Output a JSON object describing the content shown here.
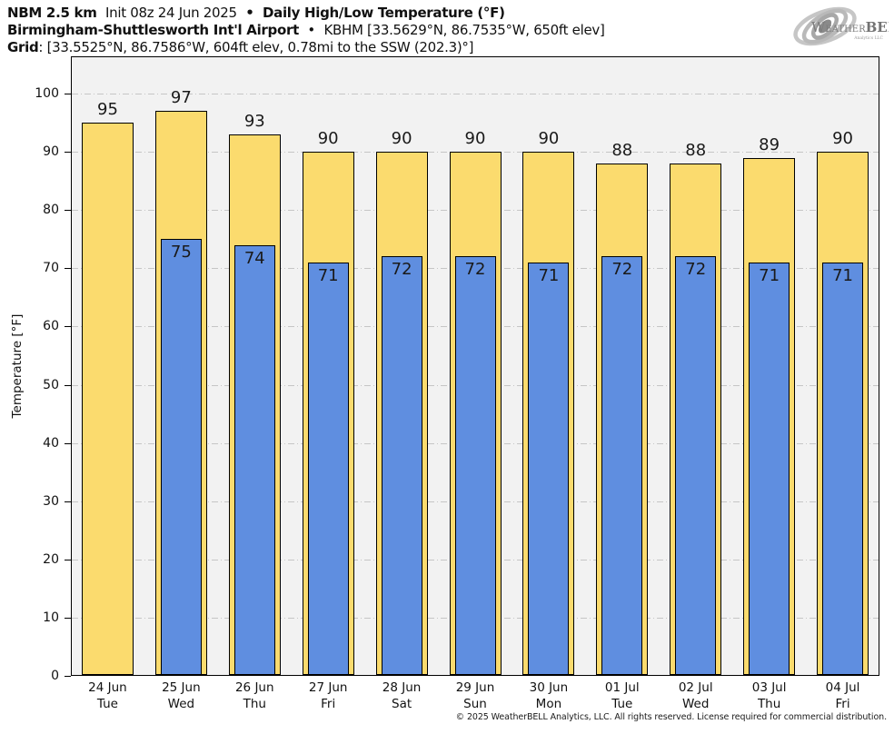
{
  "header": {
    "line1": {
      "model": "NBM 2.5 km",
      "init": "Init 08z 24 Jun 2025",
      "separator": "•",
      "title": "Daily High/Low Temperature (°F)"
    },
    "line2": {
      "station": "Birmingham-Shuttlesworth Int'l Airport",
      "separator": "•",
      "station_info": "KBHM [33.5629°N, 86.7535°W, 650ft elev]"
    },
    "line3": {
      "label": "Grid",
      "info": ": [33.5525°N, 86.7586°W, 604ft elev, 0.78mi to the SSW (202.3)°]"
    }
  },
  "logo": {
    "word_initial": "W",
    "word_rest": "EATHER",
    "word_bold": "BELL",
    "subtitle": "Analytics LLC"
  },
  "chart_data": {
    "type": "bar",
    "title": "Daily High/Low Temperature (°F)",
    "xlabel": "",
    "ylabel": "Temperature [°F]",
    "ylim": [
      0,
      100
    ],
    "yticks": [
      0,
      10,
      20,
      30,
      40,
      50,
      60,
      70,
      80,
      90,
      100
    ],
    "grid": true,
    "legend_position": "none",
    "plot_background": "#f2f2f2",
    "categories": [
      {
        "date": "24 Jun",
        "day": "Tue"
      },
      {
        "date": "25 Jun",
        "day": "Wed"
      },
      {
        "date": "26 Jun",
        "day": "Thu"
      },
      {
        "date": "27 Jun",
        "day": "Fri"
      },
      {
        "date": "28 Jun",
        "day": "Sat"
      },
      {
        "date": "29 Jun",
        "day": "Sun"
      },
      {
        "date": "30 Jun",
        "day": "Mon"
      },
      {
        "date": "01 Jul",
        "day": "Tue"
      },
      {
        "date": "02 Jul",
        "day": "Wed"
      },
      {
        "date": "03 Jul",
        "day": "Thu"
      },
      {
        "date": "04 Jul",
        "day": "Fri"
      }
    ],
    "series": [
      {
        "name": "Daily High",
        "color": "#fbdb6e",
        "values": [
          95,
          97,
          93,
          90,
          90,
          90,
          90,
          88,
          88,
          89,
          90
        ]
      },
      {
        "name": "Daily Low",
        "color": "#5f8ee0",
        "values": [
          null,
          75,
          74,
          71,
          72,
          72,
          71,
          72,
          72,
          71,
          71
        ]
      }
    ]
  },
  "footer": {
    "copyright": "© 2025 WeatherBELL Analytics, LLC. All rights reserved. License required for commercial distribution."
  }
}
